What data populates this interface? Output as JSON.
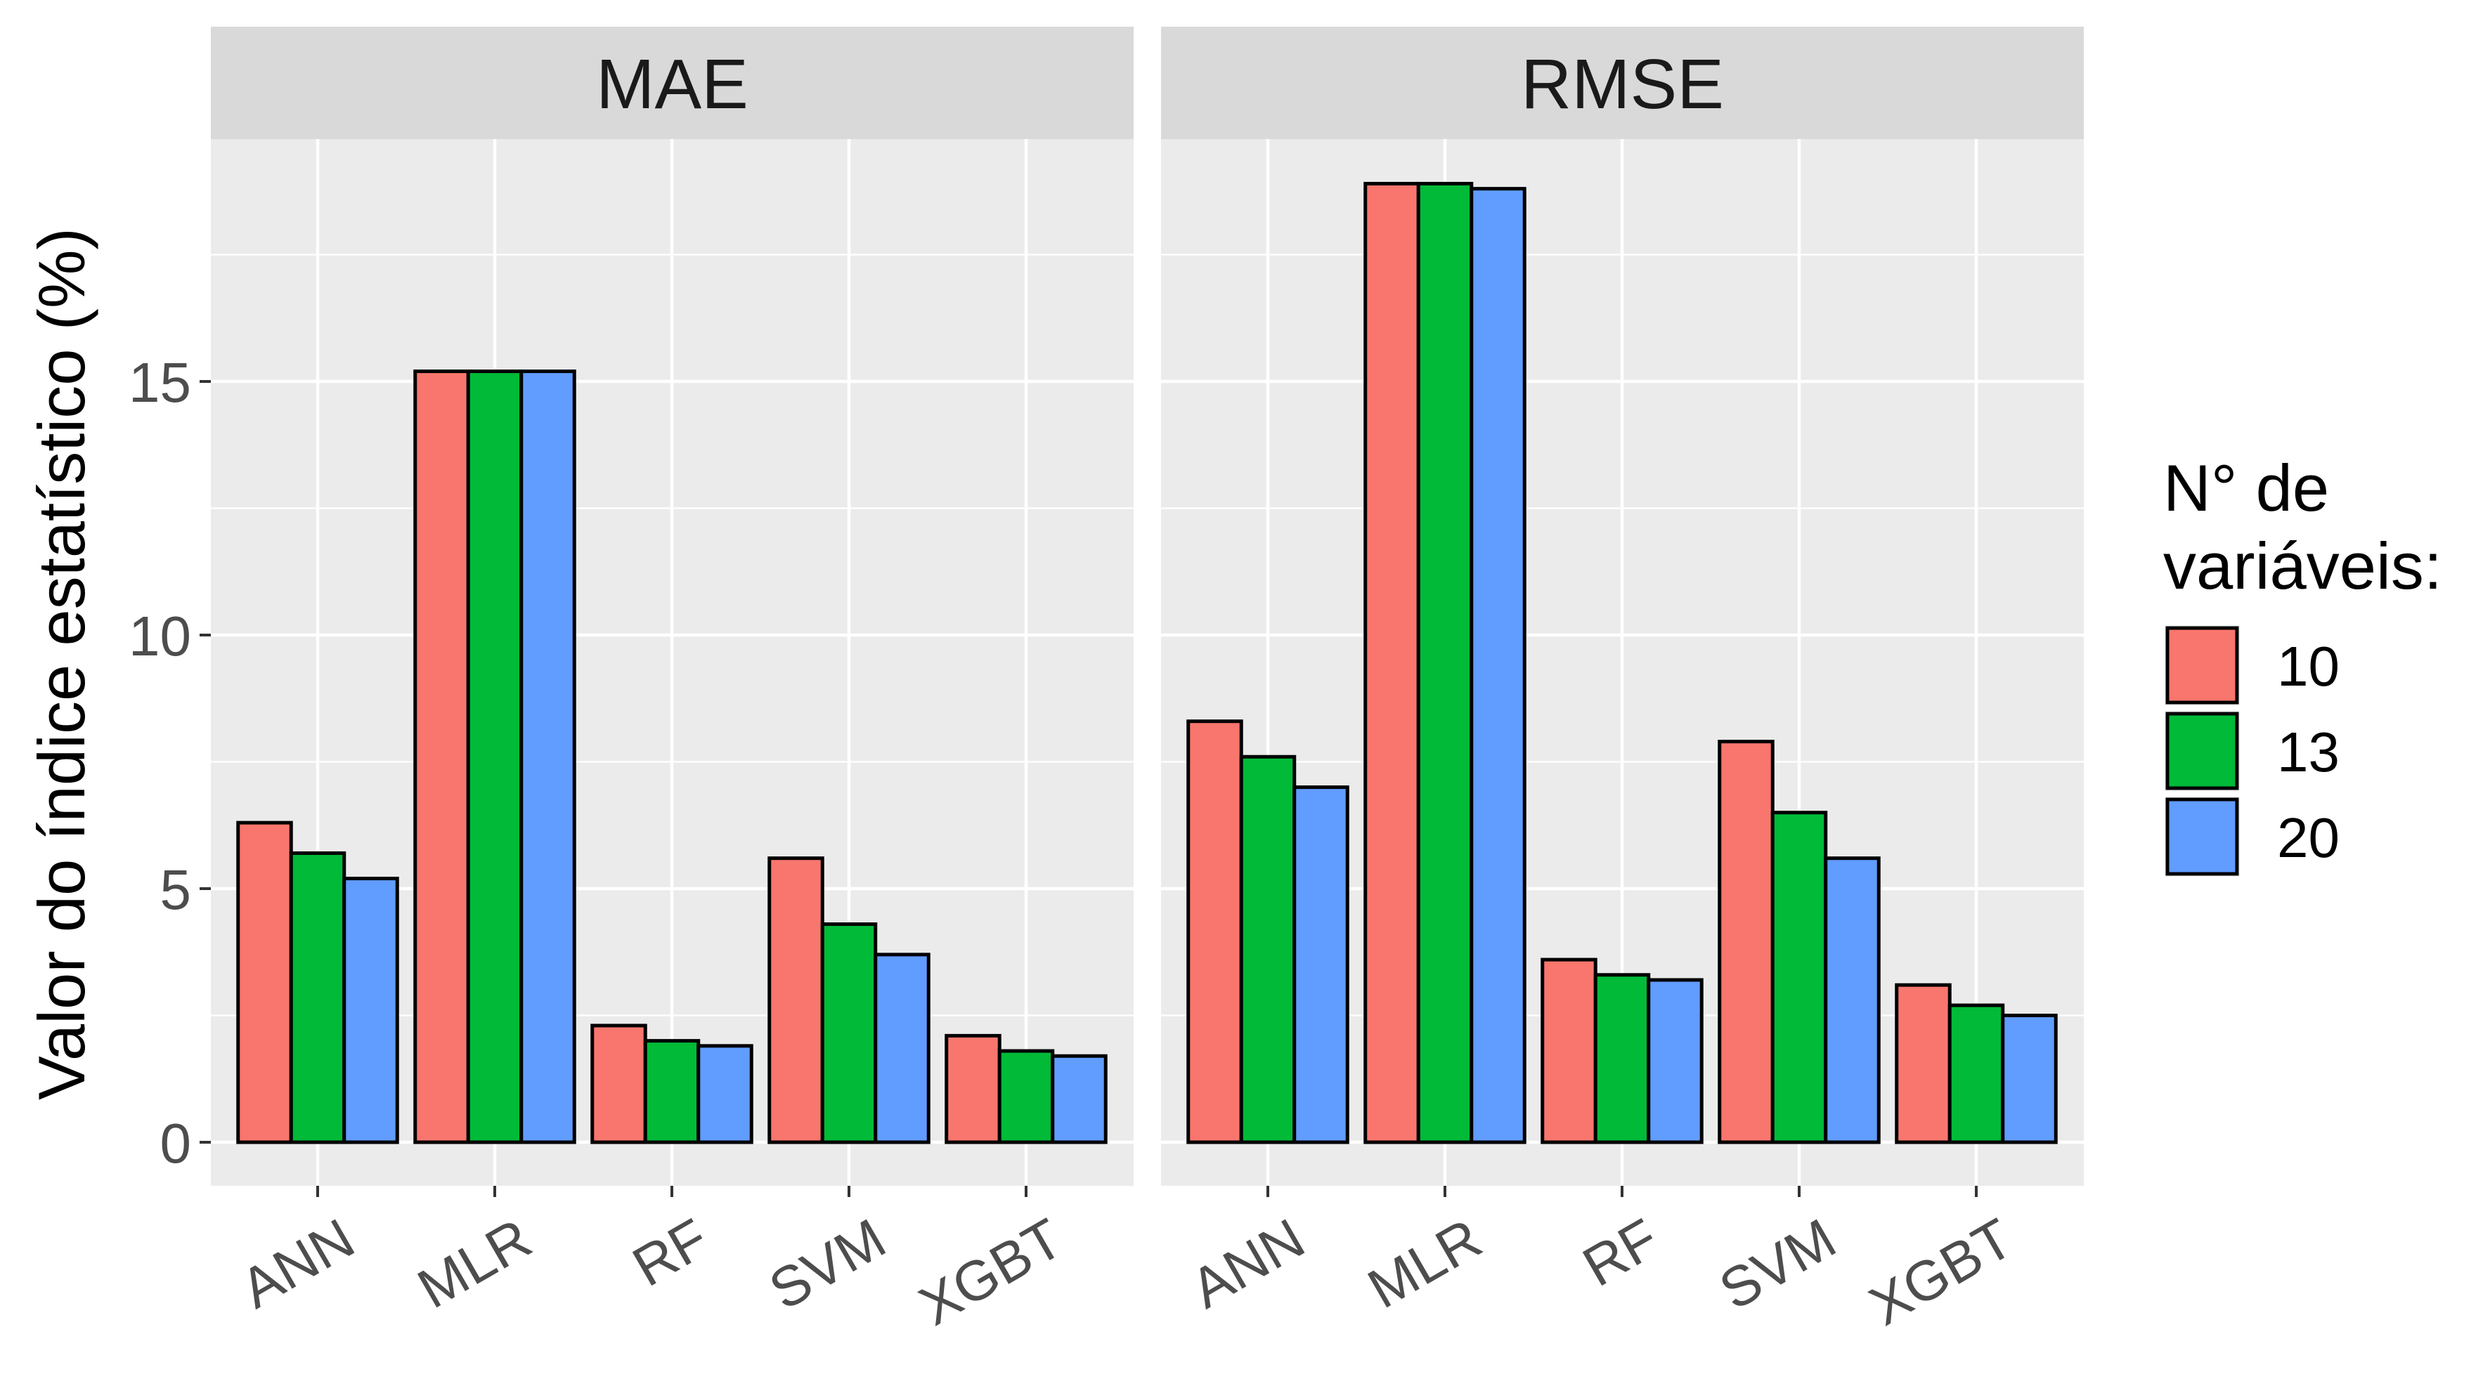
{
  "chart_data": {
    "type": "bar",
    "ylabel": "Valor do índice estatístico (%)",
    "xlabel": "",
    "ylim": [
      0,
      19.7
    ],
    "y_ticks": [
      "0",
      "5",
      "10",
      "15"
    ],
    "grid": true,
    "legend": {
      "title_line1": "N° de",
      "title_line2": "variáveis:",
      "position": "right",
      "entries": [
        {
          "label": "10",
          "color": "#F8766D"
        },
        {
          "label": "13",
          "color": "#00BA38"
        },
        {
          "label": "20",
          "color": "#619CFF"
        }
      ]
    },
    "categories": [
      "ANN",
      "MLR",
      "RF",
      "SVM",
      "XGBT"
    ],
    "panels": [
      {
        "title": "MAE",
        "series": [
          {
            "name": "10",
            "values": [
              6.3,
              15.2,
              2.3,
              5.6,
              2.1
            ]
          },
          {
            "name": "13",
            "values": [
              5.7,
              15.2,
              2.0,
              4.3,
              1.8
            ]
          },
          {
            "name": "20",
            "values": [
              5.2,
              15.2,
              1.9,
              3.7,
              1.7
            ]
          }
        ]
      },
      {
        "title": "RMSE",
        "series": [
          {
            "name": "10",
            "values": [
              8.3,
              18.9,
              3.6,
              7.9,
              3.1
            ]
          },
          {
            "name": "13",
            "values": [
              7.6,
              18.9,
              3.3,
              6.5,
              2.7
            ]
          },
          {
            "name": "20",
            "values": [
              7.0,
              18.8,
              3.2,
              5.6,
              2.5
            ]
          }
        ]
      }
    ]
  },
  "colors": {
    "panel_bg": "#EBEBEB",
    "strip_bg": "#D9D9D9",
    "grid_major": "#FFFFFF",
    "bar_outline": "#000000"
  }
}
